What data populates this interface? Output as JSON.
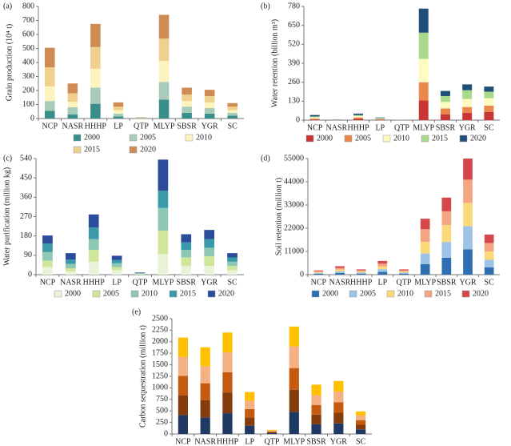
{
  "chart_data": [
    {
      "type": "bar",
      "stacked": true,
      "panel_label": "(a)",
      "y_label": "Grain production (10⁴ t)",
      "categories": [
        "NCP",
        "NASR",
        "HHHP",
        "LP",
        "QTP",
        "MLYP",
        "SBSR",
        "YGR",
        "SC"
      ],
      "ylim": [
        0,
        800
      ],
      "yticks": [
        0,
        100,
        200,
        300,
        400,
        500,
        600,
        700,
        800
      ],
      "legend": "bottom",
      "series": [
        {
          "name": "2000",
          "color": "#3a8f8a",
          "values": [
            55,
            30,
            105,
            15,
            2,
            135,
            40,
            35,
            20
          ]
        },
        {
          "name": "2005",
          "color": "#a9cbb9",
          "values": [
            70,
            50,
            115,
            20,
            2,
            125,
            45,
            40,
            20
          ]
        },
        {
          "name": "2010",
          "color": "#fcf3bf",
          "values": [
            105,
            40,
            135,
            25,
            2,
            150,
            40,
            40,
            20
          ]
        },
        {
          "name": "2015",
          "color": "#efd08f",
          "values": [
            135,
            60,
            155,
            25,
            2,
            160,
            45,
            45,
            25
          ]
        },
        {
          "name": "2020",
          "color": "#cf8c52",
          "values": [
            140,
            70,
            165,
            30,
            2,
            170,
            50,
            45,
            25
          ]
        }
      ]
    },
    {
      "type": "bar",
      "stacked": true,
      "panel_label": "(b)",
      "y_label": "Water retention (billion m³)",
      "categories": [
        "NCP",
        "NASR",
        "HHHP",
        "LP",
        "QTP",
        "MLYP",
        "SBSR",
        "YGR",
        "SC"
      ],
      "ylim": [
        0,
        780
      ],
      "yticks": [
        0,
        130,
        260,
        390,
        520,
        650,
        780
      ],
      "legend": "bottom",
      "series": [
        {
          "name": "2000",
          "color": "#c93434",
          "values": [
            5,
            1,
            10,
            3,
            0.4,
            135,
            40,
            50,
            55
          ]
        },
        {
          "name": "2005",
          "color": "#e9874c",
          "values": [
            5,
            1,
            8,
            3,
            0.4,
            125,
            40,
            40,
            45
          ]
        },
        {
          "name": "2010",
          "color": "#fdfbc2",
          "values": [
            10,
            1,
            10,
            4,
            0.4,
            160,
            45,
            55,
            50
          ]
        },
        {
          "name": "2015",
          "color": "#a9d98b",
          "values": [
            5,
            1,
            7,
            4,
            0.4,
            180,
            40,
            60,
            45
          ]
        },
        {
          "name": "2020",
          "color": "#1f4e79",
          "values": [
            10,
            1,
            10,
            4,
            0.4,
            165,
            35,
            40,
            35
          ]
        }
      ]
    },
    {
      "type": "bar",
      "stacked": true,
      "panel_label": "(c)",
      "y_label": "Water purification (million kg)",
      "categories": [
        "NCP",
        "NASR",
        "HHHP",
        "LP",
        "QTP",
        "MLYP",
        "SBSR",
        "YGR",
        "SC"
      ],
      "ylim": [
        0,
        540
      ],
      "yticks": [
        0,
        90,
        180,
        270,
        360,
        450,
        540
      ],
      "legend": "bottom",
      "series": [
        {
          "name": "2000",
          "color": "#e8f3da",
          "values": [
            35,
            15,
            60,
            20,
            2,
            95,
            40,
            40,
            20
          ]
        },
        {
          "name": "2005",
          "color": "#d0e79b",
          "values": [
            30,
            15,
            55,
            15,
            2,
            110,
            40,
            45,
            20
          ]
        },
        {
          "name": "2010",
          "color": "#8fc7b5",
          "values": [
            40,
            20,
            50,
            18,
            2,
            105,
            35,
            40,
            20
          ]
        },
        {
          "name": "2015",
          "color": "#3a9aaa",
          "values": [
            40,
            20,
            55,
            15,
            2,
            80,
            35,
            40,
            20
          ]
        },
        {
          "name": "2020",
          "color": "#2b4c9a",
          "values": [
            37,
            30,
            60,
            20,
            2,
            145,
            38,
            43,
            20
          ]
        }
      ]
    },
    {
      "type": "bar",
      "stacked": true,
      "panel_label": "(d)",
      "y_label": "Soil retention (million t)",
      "categories": [
        "NCP",
        "NASR",
        "HHHP",
        "LP",
        "QTP",
        "MLYP",
        "SBSR",
        "YGR",
        "SC"
      ],
      "ylim": [
        0,
        55000
      ],
      "yticks": [
        0,
        11000,
        22000,
        33000,
        44000,
        55000
      ],
      "legend": "bottom",
      "series": [
        {
          "name": "2000",
          "color": "#2e6fb4",
          "values": [
            400,
            800,
            500,
            1300,
            500,
            5000,
            8000,
            12000,
            3500
          ]
        },
        {
          "name": "2005",
          "color": "#9dc3e6",
          "values": [
            400,
            800,
            500,
            1300,
            500,
            5000,
            7500,
            11000,
            3500
          ]
        },
        {
          "name": "2010",
          "color": "#f9d97a",
          "values": [
            400,
            800,
            500,
            1300,
            500,
            5500,
            8000,
            11000,
            4000
          ]
        },
        {
          "name": "2015",
          "color": "#f4a582",
          "values": [
            400,
            800,
            500,
            1300,
            500,
            6000,
            6500,
            11000,
            4000
          ]
        },
        {
          "name": "2020",
          "color": "#d6474b",
          "values": [
            400,
            800,
            500,
            1300,
            500,
            5000,
            6500,
            10000,
            4000
          ]
        }
      ]
    },
    {
      "type": "bar",
      "stacked": true,
      "panel_label": "(e)",
      "y_label": "Carbon sequestration (million t)",
      "categories": [
        "NCP",
        "NASR",
        "HHHP",
        "LP",
        "QTP",
        "MLYP",
        "SBSR",
        "YGR",
        "SC"
      ],
      "ylim": [
        0,
        2500
      ],
      "yticks": [
        0,
        250,
        500,
        750,
        1000,
        1250,
        1500,
        1750,
        2000,
        2250,
        2500
      ],
      "series": [
        {
          "color": "#1f3864",
          "values": [
            410,
            360,
            450,
            180,
            18,
            480,
            210,
            230,
            100
          ]
        },
        {
          "color": "#843c0c",
          "values": [
            430,
            370,
            450,
            180,
            18,
            480,
            210,
            230,
            100
          ]
        },
        {
          "color": "#c55a11",
          "values": [
            420,
            370,
            440,
            180,
            18,
            470,
            210,
            230,
            100
          ]
        },
        {
          "color": "#f4b183",
          "values": [
            410,
            370,
            430,
            180,
            18,
            470,
            210,
            230,
            100
          ]
        },
        {
          "color": "#ffc000",
          "values": [
            420,
            410,
            430,
            190,
            18,
            430,
            230,
            230,
            90
          ]
        }
      ]
    }
  ]
}
